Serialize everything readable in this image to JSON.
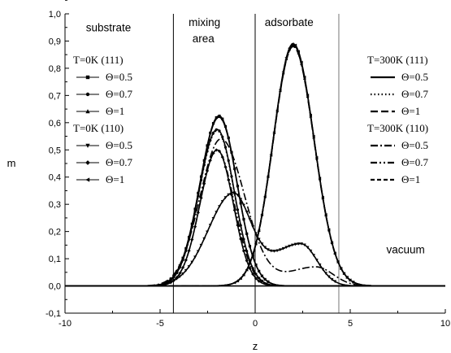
{
  "chart_data": {
    "type": "line",
    "xlabel": "z",
    "ylabel": "m",
    "xlim": [
      -10,
      10
    ],
    "ylim": [
      -0.1,
      1.0
    ],
    "xticks": [
      -10,
      -5,
      0,
      5,
      10
    ],
    "yticks": [
      "-0,1",
      "0,0",
      "0,1",
      "0,2",
      "0,3",
      "0,4",
      "0,5",
      "0,6",
      "0,7",
      "0,8",
      "0,9",
      "1,0"
    ],
    "yticks_values": [
      -0.1,
      0.0,
      0.1,
      0.2,
      0.3,
      0.4,
      0.5,
      0.6,
      0.7,
      0.8,
      0.9,
      1.0
    ],
    "vlines": [
      {
        "x": -4.3,
        "color": "#000000"
      },
      {
        "x": 0.0,
        "color": "#000000"
      },
      {
        "x": 4.4,
        "color": "#777777"
      }
    ],
    "annotations": [
      {
        "text": "substrate",
        "x": -8.9,
        "y": 0.935
      },
      {
        "text": "mixing",
        "x": -3.5,
        "y": 0.955
      },
      {
        "text": "area",
        "x": -3.3,
        "y": 0.895
      },
      {
        "text": "adsorbate",
        "x": 0.5,
        "y": 0.955
      },
      {
        "text": "vacuum",
        "x": 6.9,
        "y": 0.12
      }
    ],
    "legend_groups": [
      {
        "title": "T=0K (111)",
        "entries": [
          "Θ=0.5",
          "Θ=0.7",
          "Θ=1"
        ]
      },
      {
        "title": "T=0K (110)",
        "entries": [
          "Θ=0.5",
          "Θ=0.7",
          "Θ=1"
        ]
      },
      {
        "title": "T=300K (111)",
        "entries": [
          "Θ=0.5",
          "Θ=0.7",
          "Θ=1"
        ]
      },
      {
        "title": "T=300K (110)",
        "entries": [
          "Θ=0.5",
          "Θ=0.7",
          "Θ=1"
        ]
      }
    ],
    "series": [
      {
        "group": 0,
        "marker": "square",
        "dash": "solid",
        "peaks": [
          {
            "A": 0.625,
            "mu": -1.9,
            "sl": 1.0,
            "sr": 0.95
          }
        ]
      },
      {
        "group": 0,
        "marker": "circle",
        "dash": "solid",
        "peaks": [
          {
            "A": 0.575,
            "mu": -2.0,
            "sl": 0.95,
            "sr": 0.9
          }
        ]
      },
      {
        "group": 0,
        "marker": "triangle",
        "dash": "solid",
        "peaks": [
          {
            "A": 0.885,
            "mu": 2.0,
            "sl": 1.05,
            "sr": 1.1
          }
        ]
      },
      {
        "group": 1,
        "marker": "triangle-down",
        "dash": "solid",
        "peaks": [
          {
            "A": 0.33,
            "mu": -1.2,
            "sl": 1.3,
            "sr": 0.95
          },
          {
            "A": 0.155,
            "mu": 2.4,
            "sl": 1.6,
            "sr": 0.85
          }
        ]
      },
      {
        "group": 1,
        "marker": "diamond",
        "dash": "solid",
        "peaks": [
          {
            "A": 0.5,
            "mu": -2.0,
            "sl": 0.9,
            "sr": 0.85
          }
        ]
      },
      {
        "group": 1,
        "marker": "triangle-left",
        "dash": "solid",
        "peaks": [
          {
            "A": 0.89,
            "mu": 2.0,
            "sl": 1.05,
            "sr": 1.1
          }
        ]
      },
      {
        "group": 2,
        "marker": "none",
        "dash": "solid",
        "peaks": [
          {
            "A": 0.62,
            "mu": -1.9,
            "sl": 1.0,
            "sr": 0.95
          }
        ]
      },
      {
        "group": 2,
        "marker": "none",
        "dash": "dotted",
        "peaks": [
          {
            "A": 0.57,
            "mu": -2.0,
            "sl": 0.95,
            "sr": 0.9
          }
        ]
      },
      {
        "group": 2,
        "marker": "none",
        "dash": "dashed",
        "peaks": [
          {
            "A": 0.88,
            "mu": 2.0,
            "sl": 1.05,
            "sr": 1.1
          }
        ]
      },
      {
        "group": 3,
        "marker": "none",
        "dash": "dashdot",
        "peaks": [
          {
            "A": 0.54,
            "mu": -1.8,
            "sl": 1.1,
            "sr": 1.25
          },
          {
            "A": 0.07,
            "mu": 3.2,
            "sl": 1.5,
            "sr": 0.9
          }
        ]
      },
      {
        "group": 3,
        "marker": "none",
        "dash": "dashdotdot",
        "peaks": [
          {
            "A": 0.5,
            "mu": -2.0,
            "sl": 0.9,
            "sr": 0.9
          }
        ]
      },
      {
        "group": 3,
        "marker": "none",
        "dash": "shortdash",
        "peaks": [
          {
            "A": 0.88,
            "mu": 2.0,
            "sl": 1.05,
            "sr": 1.1
          }
        ]
      }
    ]
  }
}
